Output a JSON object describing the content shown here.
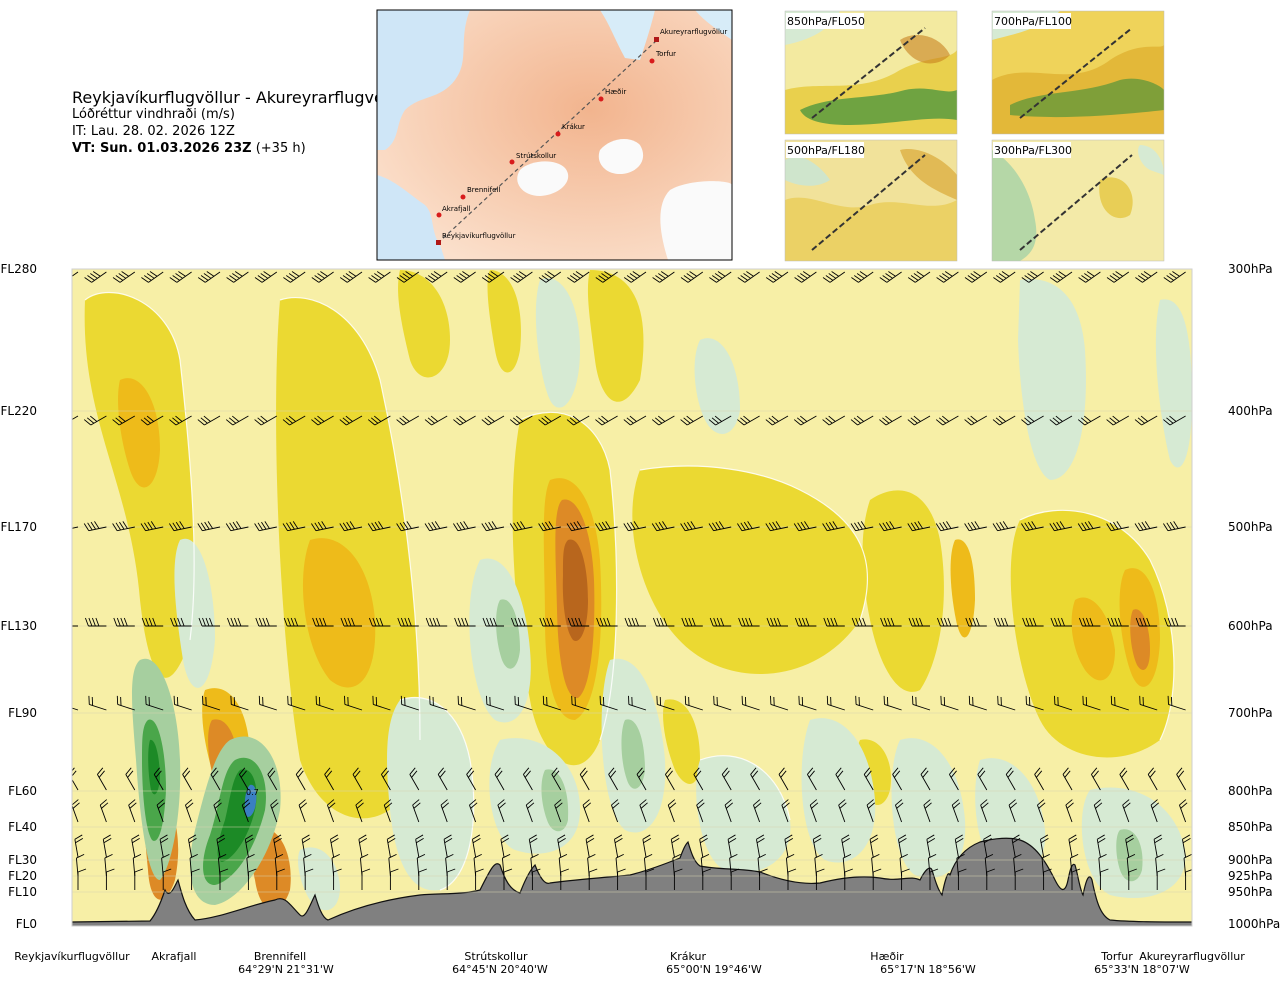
{
  "header": {
    "title": "Reykjavíkurflugvöllur - Akureyrarflugvöllur",
    "variable": "Lóðréttur vindhraði (m/s)",
    "issue_time": "IT: Lau. 28. 02. 2026 12Z",
    "valid_time_bold": "VT: Sun. 01.03.2026 23Z",
    "valid_time_offset": "(+35 h)"
  },
  "map": {
    "labels": [
      "Akureyrarflugvöllur",
      "Torfur",
      "Hæðir",
      "Krákur",
      "Strútskollur",
      "Brennifell",
      "Akrafjall",
      "Reykjavíkurflugvöllur"
    ]
  },
  "insets": [
    {
      "label": "850hPa/FL050"
    },
    {
      "label": "700hPa/FL100"
    },
    {
      "label": "500hPa/FL180"
    },
    {
      "label": "300hPa/FL300"
    }
  ],
  "chart_data": {
    "type": "heatmap",
    "title": "Reykjavíkurflugvöllur - Akureyrarflugvöllur",
    "variable": "Lóðréttur vindhraði (m/s)",
    "y_left_ticks": [
      "FL280",
      "FL220",
      "FL170",
      "FL130",
      "FL90",
      "FL60",
      "FL40",
      "FL30",
      "FL20",
      "FL10",
      "FL0"
    ],
    "y_right_ticks": [
      "300hPa",
      "400hPa",
      "500hPa",
      "600hPa",
      "700hPa",
      "800hPa",
      "850hPa",
      "900hPa",
      "925hPa",
      "950hPa",
      "1000hPa"
    ],
    "pressure_levels_hpa": [
      300,
      400,
      500,
      600,
      700,
      800,
      850,
      900,
      925,
      950,
      1000
    ],
    "x_locations": [
      {
        "name": "Reykjavíkurflugvöllur",
        "coord": ""
      },
      {
        "name": "Akrafjall",
        "coord": ""
      },
      {
        "name": "Brennifell",
        "coord": "64°29'N 21°31'W"
      },
      {
        "name": "Strútskollur",
        "coord": "64°45'N 20°40'W"
      },
      {
        "name": "Krákur",
        "coord": "65°00'N 19°46'W"
      },
      {
        "name": "Hæðir",
        "coord": "65°17'N 18°56'W"
      },
      {
        "name": "Torfur",
        "coord": "65°33'N 18°07'W"
      },
      {
        "name": "Akureyrarflugvöllur",
        "coord": ""
      }
    ],
    "annotations": [
      "0.7"
    ],
    "colors": {
      "sink_light": "#f7efa6",
      "sink_mid": "#ebd932",
      "sink_strong": "#eebb1a",
      "sink_very_strong": "#dd8a26",
      "sink_extreme": "#b8661d",
      "rise_light": "#d6ead3",
      "rise_mid": "#a6cf9f",
      "rise_strong": "#4aa64a",
      "rise_very_strong": "#1c8a26",
      "rise_extreme": "#3a7fc2",
      "terrain": "#808080"
    }
  }
}
